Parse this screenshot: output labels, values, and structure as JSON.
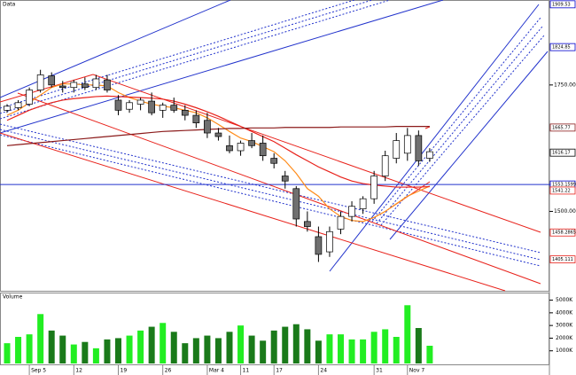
{
  "chart_data": {
    "type": "candlestick",
    "title": "Data",
    "categories": [
      null,
      null,
      "Sep 5",
      null,
      null,
      null,
      "12",
      null,
      null,
      null,
      "19",
      null,
      null,
      null,
      "26",
      null,
      null,
      null,
      "Mar 4",
      null,
      null,
      "11",
      null,
      null,
      "17",
      null,
      null,
      null,
      "24",
      null,
      null,
      null,
      null,
      "31",
      null,
      null,
      "Nov 7",
      null,
      null
    ],
    "open": [
      1700,
      1705,
      1712,
      1740,
      1768,
      1748,
      1745,
      1752,
      1745,
      1760,
      1720,
      1702,
      1712,
      1718,
      1700,
      1710,
      1700,
      1690,
      1680,
      1655,
      1630,
      1620,
      1640,
      1635,
      1605,
      1570,
      1545,
      1480,
      1450,
      1420,
      1465,
      1490,
      1505,
      1525,
      1570,
      1605,
      1615,
      1650,
      1605
    ],
    "high": [
      1712,
      1720,
      1745,
      1780,
      1775,
      1758,
      1760,
      1765,
      1770,
      1770,
      1730,
      1720,
      1725,
      1735,
      1715,
      1725,
      1710,
      1700,
      1695,
      1665,
      1650,
      1640,
      1655,
      1650,
      1615,
      1580,
      1550,
      1500,
      1470,
      1470,
      1500,
      1520,
      1530,
      1580,
      1620,
      1655,
      1665,
      1660,
      1625
    ],
    "low": [
      1695,
      1700,
      1708,
      1735,
      1745,
      1735,
      1735,
      1740,
      1740,
      1735,
      1690,
      1695,
      1700,
      1690,
      1685,
      1695,
      1680,
      1665,
      1645,
      1640,
      1615,
      1610,
      1625,
      1600,
      1585,
      1545,
      1470,
      1460,
      1400,
      1410,
      1455,
      1480,
      1495,
      1515,
      1560,
      1595,
      1600,
      1590,
      1598
    ],
    "close": [
      1708,
      1715,
      1740,
      1770,
      1750,
      1745,
      1755,
      1745,
      1762,
      1740,
      1700,
      1715,
      1720,
      1695,
      1710,
      1700,
      1690,
      1675,
      1655,
      1648,
      1620,
      1635,
      1630,
      1610,
      1595,
      1560,
      1485,
      1470,
      1415,
      1460,
      1490,
      1510,
      1525,
      1570,
      1610,
      1640,
      1650,
      1600,
      1618
    ],
    "series": [
      {
        "color": "#ff8c1a",
        "values": [
          1690,
          1700,
          1715,
          1730,
          1745,
          1752,
          1752,
          1750,
          1750,
          1748,
          1735,
          1725,
          1718,
          1712,
          1708,
          1705,
          1700,
          1695,
          1685,
          1672,
          1658,
          1645,
          1638,
          1628,
          1618,
          1600,
          1575,
          1545,
          1530,
          1505,
          1490,
          1482,
          1480,
          1488,
          1500,
          1515,
          1530,
          1540,
          1550
        ]
      },
      {
        "color": "#e8221b",
        "values": [
          1680,
          1690,
          1700,
          1708,
          1715,
          1720,
          1723,
          1725,
          1727,
          1728,
          1727,
          1726,
          1725,
          1724,
          1722,
          1718,
          1712,
          1705,
          1697,
          1688,
          1678,
          1668,
          1658,
          1648,
          1638,
          1625,
          1612,
          1600,
          1588,
          1578,
          1568,
          1560,
          1555,
          1552,
          1550,
          1548,
          1548,
          1548,
          1549
        ]
      },
      {
        "color": "#8b1a1a",
        "values": [
          1630,
          1632,
          1634,
          1636,
          1638,
          1640,
          1642,
          1644,
          1646,
          1648,
          1650,
          1652,
          1654,
          1656,
          1658,
          1659,
          1660,
          1661,
          1662,
          1663,
          1664,
          1664,
          1665,
          1665,
          1665,
          1666,
          1666,
          1666,
          1666,
          1666,
          1667,
          1667,
          1667,
          1667,
          1667,
          1668,
          1668,
          1668,
          1668
        ]
      }
    ],
    "ylim": [
      1343,
      1918
    ],
    "yticks": [
      {
        "value": 1750,
        "label": "1750.00"
      },
      {
        "value": 1500,
        "label": "1500.00"
      }
    ],
    "markers": [
      {
        "value": 1909.53,
        "color": "#0000cc"
      },
      {
        "value": 1824.85,
        "color": "#0000cc"
      },
      {
        "value": 1665.77,
        "color": "#8b1a1a"
      },
      {
        "value": 1616.17,
        "color": "#000000"
      },
      {
        "value": 1553.1599,
        "color": "#0000cc"
      },
      {
        "value": 1541.22,
        "color": "#e8221b"
      },
      {
        "value": 1458.2865,
        "color": "#e8221b"
      },
      {
        "value": 1405.111,
        "color": "#e8221b"
      }
    ],
    "volume": {
      "title": "Volume",
      "values": [
        1600,
        2100,
        2300,
        3900,
        2600,
        2200,
        1500,
        1700,
        1200,
        1900,
        2000,
        2200,
        2600,
        2900,
        3200,
        2500,
        1600,
        2000,
        2200,
        2000,
        2500,
        3000,
        2200,
        1800,
        2600,
        2900,
        3100,
        2700,
        1800,
        2300,
        2300,
        1900,
        1900,
        2500,
        2700,
        2100,
        4600,
        2800,
        1400
      ],
      "ylim": [
        0,
        5600
      ],
      "yticks": [
        {
          "value": 5000,
          "label": "5000K"
        },
        {
          "value": 4000,
          "label": "4000K"
        },
        {
          "value": 3000,
          "label": "3000K"
        },
        {
          "value": 2000,
          "label": "2000K"
        },
        {
          "value": 1000,
          "label": "1000K"
        }
      ]
    }
  }
}
